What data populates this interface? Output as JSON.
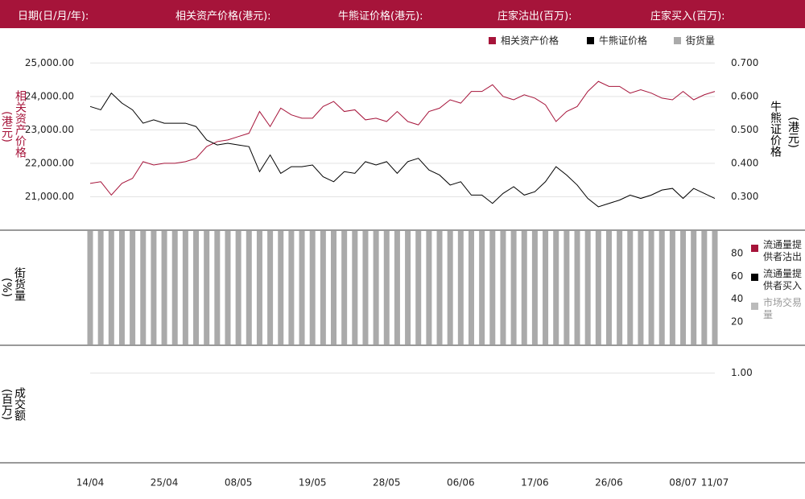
{
  "header": {
    "fields": [
      "日期(日/月/年):",
      "相关资产价格(港元):",
      "牛熊证价格(港元):",
      "庄家沽出(百万):",
      "庄家买入(百万):"
    ]
  },
  "chart_data": [
    {
      "type": "line",
      "y_label": "相关资产价格",
      "y_unit": "(港元)",
      "y2_label": "牛熊证价格",
      "y2_unit": "(港元)",
      "categories": [
        "14/04",
        null,
        null,
        null,
        null,
        null,
        null,
        "25/04",
        null,
        null,
        null,
        null,
        null,
        null,
        "08/05",
        null,
        null,
        null,
        null,
        null,
        null,
        "19/05",
        null,
        null,
        null,
        null,
        null,
        null,
        "28/05",
        null,
        null,
        null,
        null,
        null,
        null,
        "06/06",
        null,
        null,
        null,
        null,
        null,
        null,
        "17/06",
        null,
        null,
        null,
        null,
        null,
        null,
        "26/06",
        null,
        null,
        null,
        null,
        null,
        null,
        "08/07",
        null,
        null,
        "11/07"
      ],
      "series": [
        {
          "name": "相关资产价格",
          "color": "#a6143a",
          "values": [
            21400,
            21450,
            21050,
            21400,
            21550,
            22050,
            21950,
            22000,
            22000,
            22050,
            22150,
            22500,
            22650,
            22700,
            22800,
            22900,
            23550,
            23100,
            23650,
            23450,
            23350,
            23350,
            23700,
            23850,
            23550,
            23600,
            23300,
            23350,
            23250,
            23550,
            23250,
            23150,
            23550,
            23650,
            23900,
            23800,
            24150,
            24150,
            24350,
            24000,
            23900,
            24050,
            23950,
            23750,
            23250,
            23550,
            23700,
            24150,
            24450,
            24300,
            24300,
            24100,
            24200,
            24100,
            23950,
            23900,
            24150,
            23900,
            24050,
            24150
          ]
        },
        {
          "name": "牛熊证价格",
          "color": "#000000",
          "axis": "y2",
          "values": [
            0.57,
            0.56,
            0.61,
            0.58,
            0.56,
            0.52,
            0.53,
            0.52,
            0.52,
            0.52,
            0.51,
            0.47,
            0.455,
            0.46,
            0.455,
            0.45,
            0.375,
            0.425,
            0.37,
            0.39,
            0.39,
            0.395,
            0.36,
            0.345,
            0.375,
            0.37,
            0.405,
            0.395,
            0.405,
            0.37,
            0.405,
            0.415,
            0.38,
            0.365,
            0.335,
            0.345,
            0.305,
            0.305,
            0.28,
            0.31,
            0.33,
            0.305,
            0.315,
            0.345,
            0.39,
            0.365,
            0.335,
            0.295,
            0.27,
            0.28,
            0.29,
            0.305,
            0.295,
            0.305,
            0.32,
            0.325,
            0.295,
            0.325,
            0.31,
            0.295
          ]
        }
      ],
      "ylim": [
        20000,
        25200
      ],
      "yticks": [
        {
          "value": 21000,
          "label": "21,000.00"
        },
        {
          "value": 22000,
          "label": "22,000.00"
        },
        {
          "value": 23000,
          "label": "23,000.00"
        },
        {
          "value": 24000,
          "label": "24,000.00"
        },
        {
          "value": 25000,
          "label": "25,000.00"
        }
      ],
      "y2lim": [
        0.2,
        0.72
      ],
      "y2ticks": [
        {
          "value": 0.3,
          "label": "0.300"
        },
        {
          "value": 0.4,
          "label": "0.400"
        },
        {
          "value": 0.5,
          "label": "0.500"
        },
        {
          "value": 0.6,
          "label": "0.600"
        },
        {
          "value": 0.7,
          "label": "0.700"
        }
      ],
      "grid": true
    },
    {
      "type": "bar",
      "y_label": "街货量",
      "y_unit": "(%)",
      "series": [
        {
          "name": "街货量",
          "color": "#aaaaaa",
          "values": [
            100,
            100,
            100,
            100,
            100,
            100,
            100,
            100,
            100,
            100,
            100,
            100,
            100,
            100,
            100,
            100,
            100,
            100,
            100,
            100,
            100,
            100,
            100,
            100,
            100,
            100,
            100,
            100,
            100,
            100,
            100,
            100,
            100,
            100,
            100,
            100,
            100,
            100,
            100,
            100,
            100,
            100,
            100,
            100,
            100,
            100,
            100,
            100,
            100,
            100,
            100,
            100,
            100,
            100,
            100,
            100,
            100,
            100,
            100,
            100
          ]
        }
      ],
      "ylim": [
        0,
        100
      ],
      "yticks": [
        20,
        40,
        60,
        80
      ],
      "legend": [
        {
          "name": "流通量提供者沽出",
          "color": "#a6143a"
        },
        {
          "name": "流通量提供者买入",
          "color": "#000000"
        },
        {
          "name": "市场交易量",
          "color": "#bbbbbb"
        }
      ]
    },
    {
      "type": "bar",
      "y_label": "成交额",
      "y_unit": "(百万)",
      "ylim": [
        0,
        1.3
      ],
      "yticks": [
        {
          "value": 1,
          "label": "1.00"
        }
      ],
      "grid": true
    }
  ]
}
